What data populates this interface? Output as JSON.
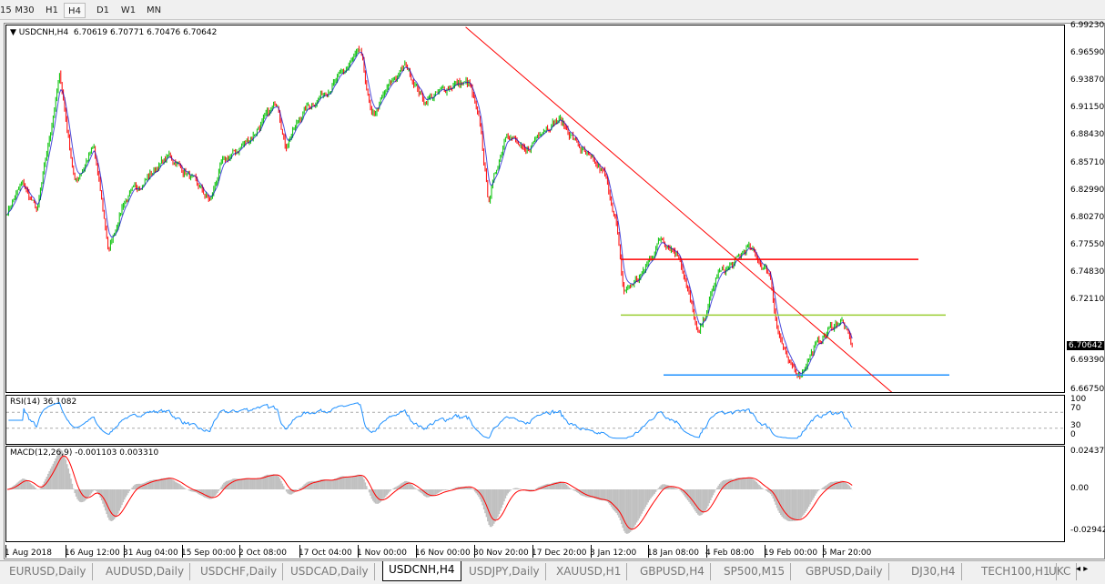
{
  "timeframes": [
    "15",
    "M30",
    "H1",
    "H4",
    "D1",
    "W1",
    "MN"
  ],
  "active_timeframe": "H4",
  "header": {
    "symbol": "USDCNH,H4",
    "ohlc": "6.70619 6.70771 6.70476 6.70642"
  },
  "price_axis": [
    "6.99230",
    "6.96590",
    "6.93870",
    "6.91150",
    "6.88430",
    "6.85710",
    "6.82990",
    "6.80270",
    "6.77550",
    "6.74830",
    "6.72110",
    "6.69390",
    "6.66750"
  ],
  "current_price": "6.70642",
  "rsi": {
    "label": "RSI(14) 36.1082",
    "levels": [
      "100",
      "70",
      "30",
      "0"
    ]
  },
  "macd": {
    "label": "MACD(12,26,9) -0.001103 0.003310",
    "levels": [
      "0.024372",
      "0.00",
      "-0.029423"
    ]
  },
  "time_axis": [
    "1 Aug 2018",
    "16 Aug 12:00",
    "31 Aug 04:00",
    "15 Sep 00:00",
    "2 Oct 08:00",
    "17 Oct 04:00",
    "1 Nov 00:00",
    "16 Nov 00:00",
    "30 Nov 20:00",
    "17 Dec 20:00",
    "3 Jan 12:00",
    "18 Jan 08:00",
    "4 Feb 08:00",
    "19 Feb 00:00",
    "5 Mar 20:00"
  ],
  "tabs": [
    "EURUSD,Daily",
    "AUDUSD,Daily",
    "USDCHF,Daily",
    "USDCAD,Daily",
    "USDCNH,H4",
    "USDJPY,Daily",
    "XAUUSD,H1",
    "GBPUSD,H4",
    "SP500,M15",
    "GBPUSD,Daily",
    "DJ30,H4",
    "TECH100,H1",
    "UKC"
  ],
  "active_tab": "USDCNH,H4",
  "colors": {
    "bull": "#00c000",
    "bear": "#ff0000",
    "ma": "#0000cc",
    "trendline": "#ff0000",
    "resistance": "#ff0000",
    "support_mid": "#9acd32",
    "support_low": "#1e90ff",
    "rsi": "#1e90ff",
    "macd_hist": "#c0c0c0",
    "macd_signal": "#ff0000"
  },
  "chart_data": {
    "type": "candlestick",
    "ylim": [
      6.6675,
      6.9923
    ],
    "close_trend": [
      [
        "2018-08-01",
        6.829
      ],
      [
        "2018-08-05",
        6.854
      ],
      [
        "2018-08-09",
        6.829
      ],
      [
        "2018-08-15",
        6.952
      ],
      [
        "2018-08-19",
        6.854
      ],
      [
        "2018-08-24",
        6.887
      ],
      [
        "2018-08-28",
        6.793
      ],
      [
        "2018-09-01",
        6.838
      ],
      [
        "2018-09-08",
        6.862
      ],
      [
        "2018-09-13",
        6.879
      ],
      [
        "2018-09-18",
        6.862
      ],
      [
        "2018-09-24",
        6.838
      ],
      [
        "2018-09-27",
        6.871
      ],
      [
        "2018-10-05",
        6.896
      ],
      [
        "2018-10-12",
        6.928
      ],
      [
        "2018-10-14",
        6.887
      ],
      [
        "2018-10-19",
        6.92
      ],
      [
        "2018-10-27",
        6.944
      ],
      [
        "2018-11-03",
        6.973
      ],
      [
        "2018-11-06",
        6.912
      ],
      [
        "2018-11-11",
        6.944
      ],
      [
        "2018-11-15",
        6.961
      ],
      [
        "2018-11-20",
        6.928
      ],
      [
        "2018-11-28",
        6.944
      ],
      [
        "2018-12-02",
        6.944
      ],
      [
        "2018-12-05",
        6.903
      ],
      [
        "2018-12-07",
        6.838
      ],
      [
        "2018-12-12",
        6.903
      ],
      [
        "2018-12-17",
        6.879
      ],
      [
        "2018-12-21",
        6.903
      ],
      [
        "2018-12-26",
        6.912
      ],
      [
        "2019-01-02",
        6.879
      ],
      [
        "2019-01-07",
        6.862
      ],
      [
        "2019-01-10",
        6.821
      ],
      [
        "2019-01-12",
        6.756
      ],
      [
        "2019-01-17",
        6.772
      ],
      [
        "2019-01-22",
        6.805
      ],
      [
        "2019-01-27",
        6.789
      ],
      [
        "2019-02-01",
        6.715
      ],
      [
        "2019-02-06",
        6.772
      ],
      [
        "2019-02-10",
        6.78
      ],
      [
        "2019-02-14",
        6.797
      ],
      [
        "2019-02-20",
        6.772
      ],
      [
        "2019-02-22",
        6.723
      ],
      [
        "2019-02-25",
        6.69
      ],
      [
        "2019-02-28",
        6.682
      ],
      [
        "2019-03-04",
        6.707
      ],
      [
        "2019-03-08",
        6.723
      ],
      [
        "2019-03-11",
        6.731
      ],
      [
        "2019-03-14",
        6.706
      ]
    ],
    "horizontal_lines": [
      {
        "price": 6.7855,
        "color": "#ff0000"
      },
      {
        "price": 6.7353,
        "color": "#9acd32"
      },
      {
        "price": 6.6812,
        "color": "#1e90ff"
      }
    ],
    "trendline": [
      [
        "2018-12-01",
        6.995
      ],
      [
        "2019-03-25",
        6.664
      ]
    ]
  }
}
